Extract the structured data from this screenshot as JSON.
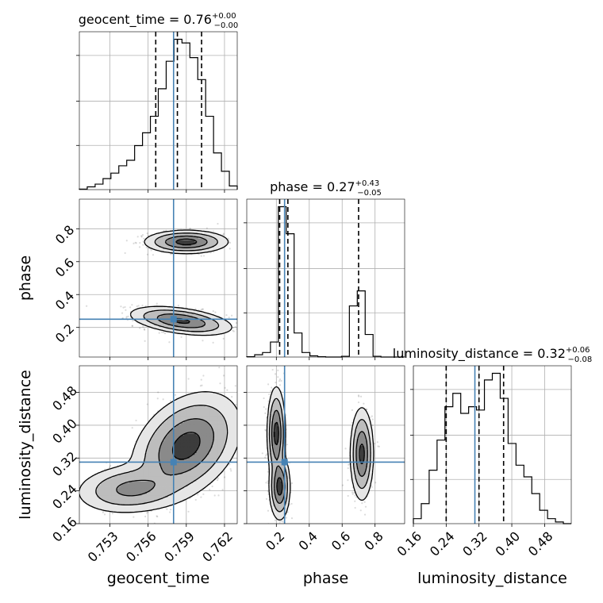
{
  "chart_data": {
    "type": "corner",
    "parameters": [
      "geocent_time",
      "phase",
      "luminosity_distance"
    ],
    "truths": {
      "geocent_time": 0.758,
      "phase": 0.25,
      "luminosity_distance": 0.31
    },
    "ranges": {
      "geocent_time": [
        0.7506,
        0.763
      ],
      "phase": [
        0.02,
        0.98
      ],
      "luminosity_distance": [
        0.16,
        0.545
      ]
    },
    "ticks": {
      "geocent_time": [
        "0.753",
        "0.756",
        "0.759",
        "0.762"
      ],
      "phase": [
        "0.2",
        "0.4",
        "0.6",
        "0.8"
      ],
      "luminosity_distance": [
        "0.16",
        "0.24",
        "0.32",
        "0.40",
        "0.48"
      ]
    },
    "titles": [
      {
        "param": "geocent_time",
        "label": "geocent_time = 0.76",
        "plus": "+0.00",
        "minus": "−0.00"
      },
      {
        "param": "phase",
        "label": "phase = 0.27",
        "plus": "+0.43",
        "minus": "−0.05"
      },
      {
        "param": "luminosity_distance",
        "label": "luminosity_distance = 0.32",
        "plus": "+0.06",
        "minus": "−0.08"
      }
    ],
    "quantiles": {
      "geocent_time": [
        0.7566,
        0.7583,
        0.7602
      ],
      "phase": [
        0.22,
        0.27,
        0.7
      ],
      "luminosity_distance": [
        0.24,
        0.32,
        0.38
      ]
    },
    "histograms": {
      "geocent_time": {
        "edges": [
          0.7506,
          0.75122,
          0.75184,
          0.75246,
          0.75308,
          0.7537,
          0.75432,
          0.75494,
          0.75556,
          0.75618,
          0.7568,
          0.75742,
          0.75804,
          0.75866,
          0.75928,
          0.7599,
          0.76052,
          0.76114,
          0.76176,
          0.76238,
          0.763
        ],
        "counts": [
          0.3,
          1.5,
          3,
          6,
          9,
          13,
          16,
          24,
          31,
          40,
          55,
          70,
          82,
          80,
          72,
          60,
          40,
          20,
          10,
          2
        ]
      },
      "phase": {
        "edges": [
          0.02,
          0.068,
          0.116,
          0.164,
          0.212,
          0.26,
          0.308,
          0.356,
          0.404,
          0.452,
          0.5,
          0.548,
          0.596,
          0.644,
          0.692,
          0.74,
          0.788,
          0.836,
          0.884,
          0.932,
          0.98
        ],
        "counts": [
          0.2,
          1.5,
          3,
          10,
          100,
          82,
          16,
          3,
          0.8,
          0.2,
          0,
          0,
          0.5,
          34,
          44,
          15,
          0.5,
          0,
          0,
          0
        ]
      },
      "luminosity_distance": {
        "edges": [
          0.16,
          0.17925,
          0.1985,
          0.21775,
          0.237,
          0.25625,
          0.2755,
          0.29475,
          0.314,
          0.33325,
          0.3525,
          0.37175,
          0.391,
          0.41025,
          0.4295,
          0.44875,
          0.468,
          0.48725,
          0.5065,
          0.52575,
          0.545
        ],
        "counts": [
          3,
          12,
          32,
          50,
          70,
          78,
          66,
          70,
          68,
          86,
          90,
          75,
          48,
          35,
          28,
          18,
          8,
          3,
          1,
          0
        ]
      }
    },
    "clusters": {
      "geocent_time|phase": [
        {
          "mx": 0.7586,
          "my": 0.24,
          "sx": 0.0016,
          "sy": 0.035,
          "rho": -0.45,
          "w": 0.58
        },
        {
          "mx": 0.759,
          "my": 0.72,
          "sx": 0.0013,
          "sy": 0.028,
          "rho": 0.0,
          "w": 0.42
        }
      ],
      "geocent_time|luminosity_distance": [
        {
          "mx": 0.759,
          "my": 0.35,
          "sx": 0.0017,
          "sy": 0.052,
          "rho": 0.35,
          "w": 0.78
        },
        {
          "mx": 0.7547,
          "my": 0.245,
          "sx": 0.0018,
          "sy": 0.025,
          "rho": 0.15,
          "w": 0.22
        }
      ],
      "phase|luminosity_distance": [
        {
          "mx": 0.2,
          "my": 0.38,
          "sx": 0.022,
          "sy": 0.045,
          "rho": 0.0,
          "w": 0.33
        },
        {
          "mx": 0.22,
          "my": 0.25,
          "sx": 0.025,
          "sy": 0.032,
          "rho": 0.0,
          "w": 0.27
        },
        {
          "mx": 0.72,
          "my": 0.33,
          "sx": 0.028,
          "sy": 0.045,
          "rho": 0.0,
          "w": 0.4
        }
      ]
    },
    "contour_levels_sigma": [
      0.5,
      1.0,
      1.5,
      2.0
    ],
    "grid": true,
    "colors": {
      "truth": "#4682b4",
      "hist": "#000000",
      "quantile": "#000000"
    }
  }
}
